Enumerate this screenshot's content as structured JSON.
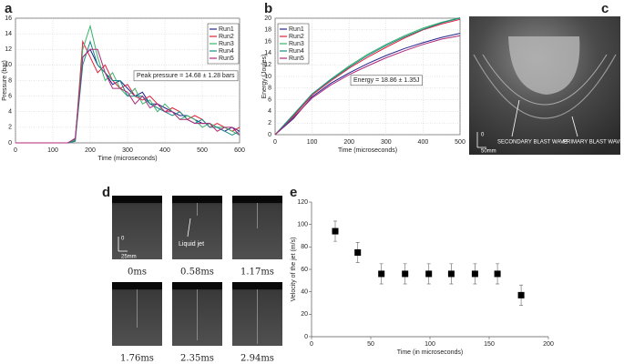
{
  "chart_data": [
    {
      "type": "line",
      "label": "a",
      "xlabel": "Time (microseconds)",
      "ylabel": "Pressure (bar)",
      "annotation": "Peak pressure = 14.68 ± 1.28 bars",
      "x": [
        0,
        20,
        40,
        60,
        80,
        100,
        120,
        140,
        160,
        180,
        200,
        220,
        240,
        260,
        280,
        300,
        320,
        340,
        360,
        380,
        400,
        420,
        440,
        460,
        480,
        500,
        520,
        540,
        560,
        580,
        600
      ],
      "series": [
        {
          "name": "Run1",
          "color": "#23238c",
          "values": [
            0,
            0,
            0,
            0,
            0,
            0,
            0,
            0,
            0.5,
            11,
            12,
            10,
            9,
            7.5,
            8,
            7,
            6,
            6.5,
            5,
            5,
            4.5,
            4,
            3.5,
            3.5,
            3,
            2.5,
            2.5,
            2,
            1.5,
            2,
            1.5
          ]
        },
        {
          "name": "Run2",
          "color": "#e0203a",
          "values": [
            0,
            0,
            0,
            0,
            0,
            0,
            0,
            0,
            0.3,
            13,
            11,
            9,
            10,
            8,
            7,
            7.5,
            6,
            5.5,
            6,
            5,
            4,
            4.5,
            4,
            3,
            3.5,
            3,
            2,
            2.5,
            2,
            1.5,
            2
          ]
        },
        {
          "name": "Run3",
          "color": "#3bb36a",
          "values": [
            0,
            0,
            0,
            0,
            0,
            0,
            0,
            0,
            0.4,
            12,
            15,
            11,
            8,
            9,
            7,
            6,
            7,
            5,
            5.5,
            4,
            5,
            4,
            3,
            3.5,
            3,
            2,
            2.5,
            2,
            2,
            1.5,
            1
          ]
        },
        {
          "name": "Run4",
          "color": "#1a8a8a",
          "values": [
            0,
            0,
            0,
            0,
            0,
            0,
            0,
            0,
            0.2,
            10,
            13,
            10,
            9,
            8,
            8,
            6,
            6,
            6,
            5,
            4.5,
            4,
            3.5,
            4,
            3,
            2.5,
            3,
            2,
            2,
            1.5,
            1,
            1.5
          ]
        },
        {
          "name": "Run5",
          "color": "#b0287a",
          "values": [
            0,
            0,
            0,
            0,
            0,
            0,
            0,
            0,
            0.6,
            11,
            12,
            12,
            9,
            7,
            7,
            6.5,
            5,
            6,
            4.5,
            5,
            4,
            4,
            3,
            3,
            2.5,
            2.5,
            2.5,
            1.5,
            2,
            2,
            1
          ]
        }
      ],
      "xlim": [
        0,
        600
      ],
      "xticks": [
        0,
        100,
        200,
        300,
        400,
        500,
        600
      ],
      "ylim": [
        0,
        16
      ],
      "yticks": [
        0,
        2,
        4,
        6,
        8,
        10,
        12,
        14,
        16
      ],
      "grid": true,
      "legend": "upper right"
    },
    {
      "type": "line",
      "label": "b",
      "xlabel": "Time (microseconds)",
      "ylabel": "Energy (Joules)",
      "annotation": "Energy = 18.86 ± 1.35J",
      "x": [
        0,
        50,
        100,
        150,
        200,
        250,
        300,
        350,
        400,
        450,
        500
      ],
      "series": [
        {
          "name": "Run1",
          "color": "#23238c",
          "values": [
            0,
            2.8,
            6.5,
            8.8,
            10.6,
            12.2,
            13.6,
            14.8,
            15.8,
            16.7,
            17.4
          ]
        },
        {
          "name": "Run2",
          "color": "#e0203a",
          "values": [
            0,
            3.2,
            6.8,
            9.2,
            11.4,
            13.3,
            15.0,
            16.6,
            18.0,
            19.0,
            19.8
          ]
        },
        {
          "name": "Run3",
          "color": "#3bb36a",
          "values": [
            0,
            3.5,
            7,
            9.5,
            11.8,
            13.8,
            15.5,
            17,
            18.3,
            19.3,
            20.1
          ]
        },
        {
          "name": "Run4",
          "color": "#1a8a8a",
          "values": [
            0,
            3.4,
            7,
            9.4,
            11.6,
            13.6,
            15.3,
            16.8,
            18.1,
            19.2,
            20
          ]
        },
        {
          "name": "Run5",
          "color": "#b0287a",
          "values": [
            0,
            3,
            6.3,
            8.5,
            10.3,
            11.8,
            13.2,
            14.4,
            15.5,
            16.4,
            17.0
          ]
        }
      ],
      "xlim": [
        0,
        500
      ],
      "xticks": [
        0,
        100,
        200,
        300,
        400,
        500
      ],
      "ylim": [
        0,
        20
      ],
      "yticks": [
        0,
        2,
        4,
        6,
        8,
        10,
        12,
        14,
        16,
        18,
        20
      ],
      "grid": true,
      "legend": "upper left"
    },
    {
      "type": "scatter",
      "label": "e",
      "xlabel": "Time (in microseconds)",
      "ylabel": "Velocity of the jet (m/s)",
      "x": [
        20,
        39,
        59,
        79,
        99,
        118,
        138,
        157,
        177
      ],
      "values": [
        94,
        75,
        56,
        56,
        56,
        56,
        56,
        56,
        37
      ],
      "errors": [
        9,
        9,
        9,
        9,
        9,
        9,
        9,
        9,
        9
      ],
      "color": "#000000",
      "xlim": [
        0,
        200
      ],
      "xticks": [
        0,
        50,
        100,
        150,
        200
      ],
      "ylim": [
        0,
        120
      ],
      "yticks": [
        0,
        20,
        40,
        60,
        80,
        100,
        120
      ],
      "grid": false
    }
  ],
  "images": {
    "c": {
      "label": "c",
      "scale_zero": "0",
      "scale": "50mm",
      "secondary": "SECONDARY BLAST WAVE",
      "primary": "PRIMARY BLAST WAVE"
    },
    "d": {
      "label": "d",
      "scale_zero": "0",
      "scale": "25mm",
      "jet": "Liquid jet",
      "frames": [
        "0ms",
        "0.58ms",
        "1.17ms",
        "1.76ms",
        "2.35ms",
        "2.94ms"
      ]
    }
  }
}
